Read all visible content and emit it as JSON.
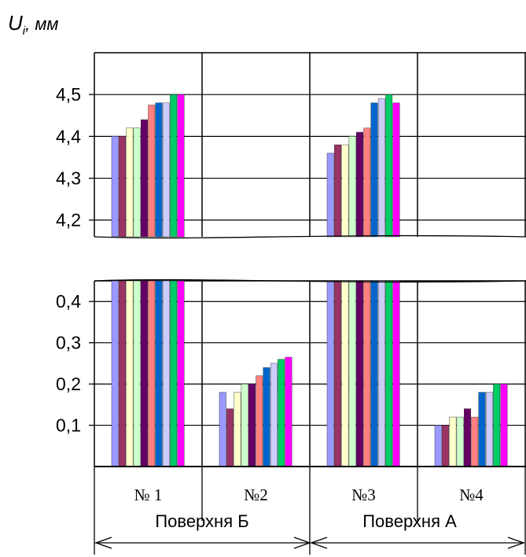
{
  "chart_data": {
    "type": "bar",
    "title": "",
    "ylabel": "U",
    "ylabel_subscript": "i",
    "ylabel_unit": ", мм",
    "axis_break": true,
    "upper_ylim": [
      4.16,
      4.6
    ],
    "upper_ticks": [
      "4,2",
      "4,3",
      "4,4",
      "4,5"
    ],
    "lower_ylim": [
      0,
      0.45
    ],
    "lower_ticks": [
      "0,1",
      "0,2",
      "0,3",
      "0,4"
    ],
    "grid": true,
    "legend": "none",
    "categories": [
      "№ 1",
      "№2",
      "№3",
      "№4"
    ],
    "groups": [
      {
        "label": "Поверхня Б",
        "categories": [
          "№ 1",
          "№2"
        ]
      },
      {
        "label": "Поверхня А",
        "categories": [
          "№3",
          "№4"
        ]
      }
    ],
    "series_colors": [
      "#9999ff",
      "#993366",
      "#ffffcc",
      "#ccffcc",
      "#660066",
      "#ff8080",
      "#0066cc",
      "#ccccff",
      "#00cc66",
      "#ff00ff"
    ],
    "series_count": 10,
    "values": [
      [
        4.4,
        4.4,
        4.42,
        4.42,
        4.44,
        4.475,
        4.48,
        4.48,
        4.5,
        4.5
      ],
      [
        0.18,
        0.14,
        0.18,
        0.2,
        0.2,
        0.22,
        0.24,
        0.25,
        0.26,
        0.265
      ],
      [
        4.36,
        4.38,
        4.38,
        4.4,
        4.41,
        4.42,
        4.48,
        4.49,
        4.5,
        4.48
      ],
      [
        0.1,
        0.1,
        0.12,
        0.12,
        0.14,
        0.12,
        0.18,
        0.18,
        0.2,
        0.2
      ]
    ]
  }
}
